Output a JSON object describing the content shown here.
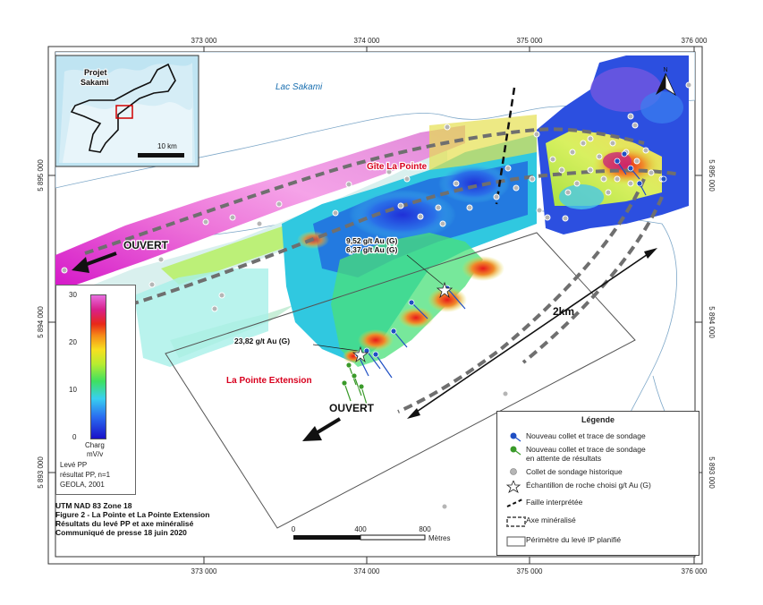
{
  "axes": {
    "x_ticks": [
      "373 000",
      "374 000",
      "375 000",
      "376 000"
    ],
    "y_ticks": [
      "5 895 000",
      "5 894 000",
      "5 893 000"
    ]
  },
  "labels": {
    "lake": "Lac Sakami",
    "gite": "Gîte La Pointe",
    "extension": "La Pointe Extension",
    "ouvert_left": "OUVERT",
    "ouvert_bottom": "OUVERT",
    "distance": "2km",
    "assay1a": "9,52 g/t Au (G)",
    "assay1b": "6,37 g/t Au (G)",
    "assay2": "23,82 g/t Au (G)",
    "north": "N"
  },
  "inset": {
    "project_line1": "Projet",
    "project_line2": "Sakami",
    "scale": "10 km"
  },
  "scalebar": {
    "labels": [
      "0",
      "400",
      "800"
    ],
    "unit": "Mètres"
  },
  "colorbar": {
    "max": "30",
    "mid_high": "20",
    "mid_low": "10",
    "min": "0",
    "unit1": "Charg",
    "unit2": "mV/v",
    "note1": "Levé PP",
    "note2": "résultat PP, n=1",
    "note3": "GEOLA, 2001"
  },
  "caption": {
    "line1": "UTM NAD 83 Zone 18",
    "line2": "Figure 2 - La Pointe et La Pointe Extension",
    "line3": "Résultats du levé PP et axe minéralisé",
    "line4": "Communiqué de presse 18 juin 2020"
  },
  "legend": {
    "title": "Légende",
    "items": [
      "Nouveau collet et trace de sondage",
      "Nouveau collet et trace de sondage",
      "en attente de résultats",
      "Collet de sondage historique",
      "Échantillon de roche choisi g/t Au (G)",
      "Faille interprétée",
      "Axe minéralisé",
      "Périmètre du levé IP planifié"
    ]
  },
  "colors": {
    "new_collar": "#1f4fc4",
    "pending_collar": "#3a9a2a",
    "historic_collar": "#aaaaaa",
    "anomaly_label": "#d8001e",
    "water": "#1a6fb0"
  }
}
